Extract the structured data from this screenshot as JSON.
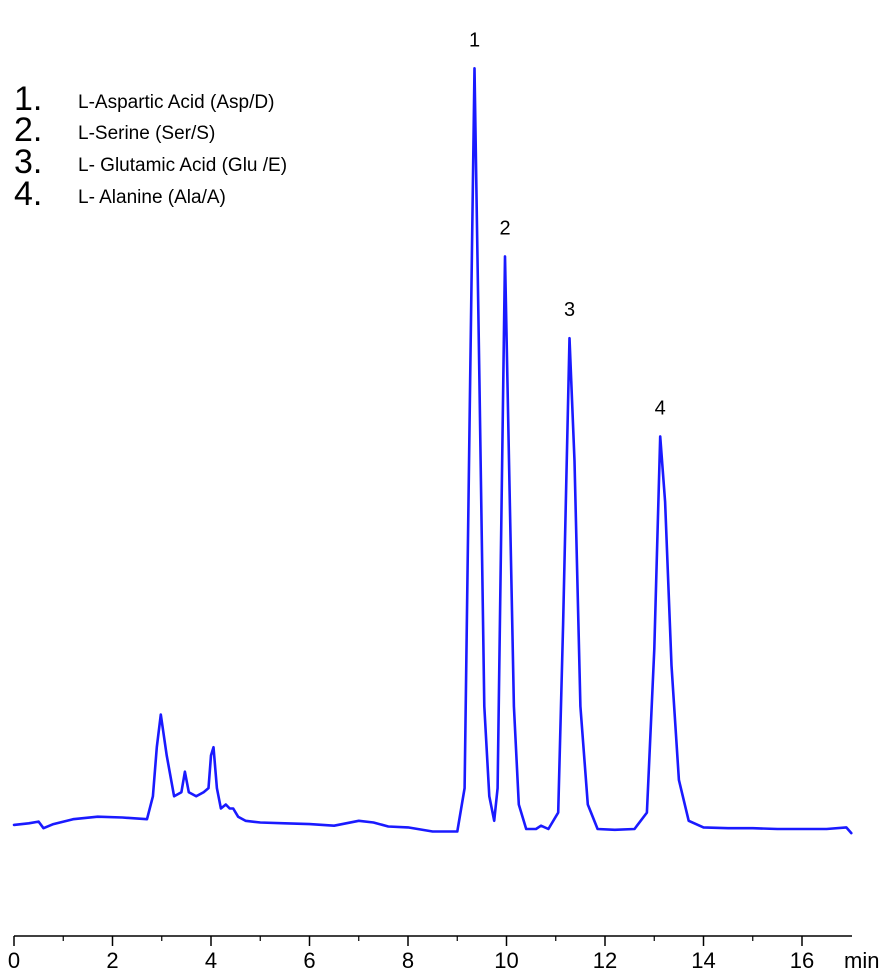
{
  "chart_data": {
    "type": "line",
    "x_unit": "min",
    "xlim": [
      0,
      17
    ],
    "x_ticks": [
      0,
      2,
      4,
      6,
      8,
      10,
      12,
      14,
      16
    ],
    "y_axis_shown": false,
    "grid": false,
    "line_color": "#1a1aff",
    "legend": [
      {
        "num": "1.",
        "text": "L-Aspartic Acid (Asp/D)"
      },
      {
        "num": "2.",
        "text": "L-Serine (Ser/S)"
      },
      {
        "num": "3.",
        "text": "L- Glutamic  Acid (Glu /E)"
      },
      {
        "num": "4.",
        "text": "L- Alanine  (Ala/A)"
      }
    ],
    "peaks": [
      {
        "label": "1",
        "x": 9.35,
        "height": 0.93
      },
      {
        "label": "2",
        "x": 9.97,
        "height": 0.7
      },
      {
        "label": "3",
        "x": 11.28,
        "height": 0.6
      },
      {
        "label": "4",
        "x": 13.12,
        "height": 0.48
      }
    ],
    "series": [
      {
        "x": [
          0,
          0.3,
          0.5,
          0.6,
          0.8,
          1.2,
          1.7,
          2.2,
          2.7,
          2.82,
          2.9,
          2.98,
          3.1,
          3.25,
          3.4,
          3.47,
          3.55,
          3.7,
          3.85,
          3.95,
          4.0,
          4.05,
          4.12,
          4.2,
          4.3,
          4.38,
          4.45,
          4.55,
          4.7,
          5.0,
          5.5,
          6.0,
          6.5,
          7.0,
          7.3,
          7.6,
          8.0,
          8.5,
          9.0,
          9.15,
          9.25,
          9.35,
          9.45,
          9.55,
          9.65,
          9.75,
          9.82,
          9.9,
          9.97,
          10.05,
          10.15,
          10.25,
          10.4,
          10.6,
          10.7,
          10.85,
          11.05,
          11.15,
          11.28,
          11.38,
          11.5,
          11.65,
          11.85,
          12.2,
          12.6,
          12.85,
          13.0,
          13.12,
          13.22,
          13.35,
          13.5,
          13.7,
          14.0,
          14.5,
          15.0,
          15.5,
          16.0,
          16.5,
          16.9,
          17.0
        ],
        "y": [
          0.005,
          0.007,
          0.009,
          0.001,
          0.006,
          0.012,
          0.015,
          0.014,
          0.012,
          0.04,
          0.1,
          0.14,
          0.09,
          0.04,
          0.045,
          0.07,
          0.045,
          0.04,
          0.045,
          0.05,
          0.09,
          0.1,
          0.05,
          0.025,
          0.03,
          0.025,
          0.025,
          0.015,
          0.01,
          0.008,
          0.007,
          0.006,
          0.004,
          0.01,
          0.008,
          0.003,
          0.002,
          -0.003,
          -0.003,
          0.05,
          0.5,
          0.93,
          0.55,
          0.15,
          0.04,
          0.01,
          0.05,
          0.4,
          0.7,
          0.45,
          0.15,
          0.03,
          0.0,
          0.0,
          0.004,
          0.0,
          0.02,
          0.25,
          0.6,
          0.45,
          0.15,
          0.03,
          0.0,
          -0.001,
          0.0,
          0.02,
          0.22,
          0.48,
          0.4,
          0.2,
          0.06,
          0.01,
          0.002,
          0.001,
          0.001,
          0.0,
          0.0,
          0.0,
          0.002,
          -0.005
        ]
      }
    ]
  }
}
